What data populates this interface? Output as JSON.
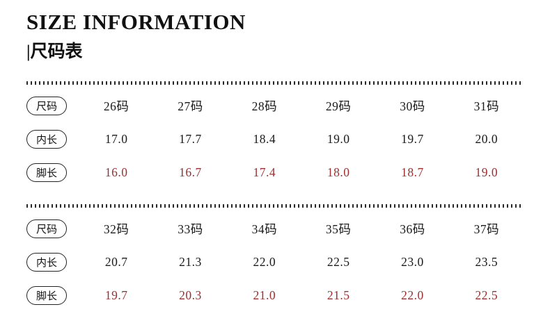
{
  "header": {
    "title": "SIZE INFORMATION",
    "subtitle": "|尺码表"
  },
  "colors": {
    "text": "#1a1a1a",
    "accent_red": "#9c2f2f"
  },
  "chart_data": [
    {
      "type": "table",
      "rows": [
        {
          "label": "尺码",
          "emphasis": "black",
          "values": [
            "26码",
            "27码",
            "28码",
            "29码",
            "30码",
            "31码"
          ]
        },
        {
          "label": "内长",
          "emphasis": "black",
          "values": [
            "17.0",
            "17.7",
            "18.4",
            "19.0",
            "19.7",
            "20.0"
          ]
        },
        {
          "label": "脚长",
          "emphasis": "red",
          "values": [
            "16.0",
            "16.7",
            "17.4",
            "18.0",
            "18.7",
            "19.0"
          ]
        }
      ]
    },
    {
      "type": "table",
      "rows": [
        {
          "label": "尺码",
          "emphasis": "black",
          "values": [
            "32码",
            "33码",
            "34码",
            "35码",
            "36码",
            "37码"
          ]
        },
        {
          "label": "内长",
          "emphasis": "black",
          "values": [
            "20.7",
            "21.3",
            "22.0",
            "22.5",
            "23.0",
            "23.5"
          ]
        },
        {
          "label": "脚长",
          "emphasis": "red",
          "values": [
            "19.7",
            "20.3",
            "21.0",
            "21.5",
            "22.0",
            "22.5"
          ]
        }
      ]
    }
  ]
}
